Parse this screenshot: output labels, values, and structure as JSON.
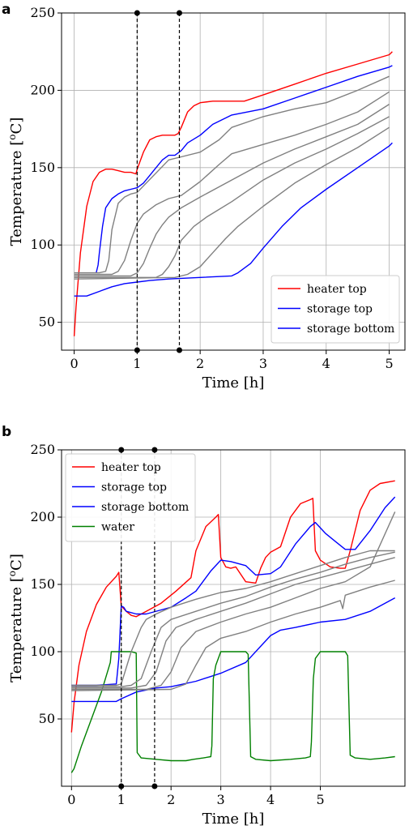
{
  "chart_data": [
    {
      "panel": "a",
      "type": "line",
      "xlabel": "Time [h]",
      "ylabel": "Temperature [",
      "ylabel_sup": "o",
      "ylabel_tail": "C]",
      "xlim": [
        -0.2,
        5.25
      ],
      "ylim": [
        32,
        250
      ],
      "xticks": [
        0,
        1,
        2,
        3,
        4,
        5
      ],
      "yticks": [
        50,
        100,
        150,
        200,
        250
      ],
      "grid": true,
      "legend_position": "lower-right",
      "vlines": [
        1.0,
        1.67
      ],
      "series": [
        {
          "name": "heater top",
          "color": "#ff0000",
          "legend": true,
          "x": [
            0,
            0.03,
            0.1,
            0.2,
            0.3,
            0.4,
            0.5,
            0.6,
            0.7,
            0.8,
            0.9,
            0.98,
            1.0,
            1.1,
            1.2,
            1.3,
            1.4,
            1.5,
            1.6,
            1.65,
            1.7,
            1.8,
            1.9,
            2.0,
            2.2,
            2.5,
            2.7,
            3.0,
            3.5,
            4.0,
            4.5,
            5.0,
            5.05
          ],
          "y": [
            41,
            60,
            95,
            125,
            141,
            147,
            149,
            149,
            148,
            147,
            147,
            146,
            149,
            160,
            168,
            170,
            171,
            171,
            171,
            172,
            176,
            186,
            190,
            192,
            193,
            193,
            193,
            197,
            204,
            211,
            217,
            223,
            225
          ]
        },
        {
          "name": "storage top",
          "color": "#0000ff",
          "legend": true,
          "x": [
            0.35,
            0.38,
            0.4,
            0.45,
            0.5,
            0.55,
            0.6,
            0.7,
            0.8,
            0.9,
            1.0,
            1.1,
            1.2,
            1.3,
            1.4,
            1.5,
            1.6,
            1.7,
            1.8,
            2.0,
            2.2,
            2.5,
            3.0,
            3.5,
            4.0,
            4.5,
            5.0,
            5.05
          ],
          "y": [
            82,
            87,
            95,
            112,
            124,
            127,
            130,
            133,
            135,
            136,
            137,
            140,
            145,
            150,
            155,
            158,
            158,
            161,
            166,
            171,
            178,
            184,
            188,
            195,
            202,
            209,
            215,
            216
          ]
        },
        {
          "name": "storage bottom",
          "color": "#0000ff",
          "legend": true,
          "x": [
            0,
            0.2,
            0.4,
            0.6,
            0.8,
            1.0,
            1.2,
            1.5,
            2.0,
            2.5,
            2.6,
            2.8,
            3.0,
            3.3,
            3.6,
            4.0,
            4.5,
            5.0,
            5.05
          ],
          "y": [
            67,
            67,
            70,
            73,
            75,
            76,
            77,
            78,
            79,
            80,
            82,
            88,
            98,
            112,
            124,
            136,
            150,
            164,
            166
          ]
        },
        {
          "name": "",
          "color": "#808080",
          "legend": false,
          "x": [
            0,
            0.4,
            0.5,
            0.55,
            0.6,
            0.7,
            0.8,
            0.9,
            1.0,
            1.5,
            1.7,
            2.0,
            2.3,
            2.5,
            3.0,
            3.5,
            4.0,
            4.5,
            5.0
          ],
          "y": [
            82,
            82,
            83,
            90,
            110,
            127,
            131,
            133,
            134,
            155,
            157,
            160,
            168,
            176,
            183,
            188,
            192,
            200,
            209
          ]
        },
        {
          "name": "",
          "color": "#808080",
          "legend": false,
          "x": [
            0,
            0.6,
            0.7,
            0.8,
            0.9,
            1.0,
            1.1,
            1.3,
            1.5,
            1.7,
            2.0,
            2.3,
            2.5,
            3.0,
            3.5,
            4.0,
            4.5,
            5.0
          ],
          "y": [
            81,
            81,
            83,
            90,
            103,
            114,
            120,
            126,
            130,
            132,
            141,
            152,
            159,
            165,
            171,
            178,
            186,
            199
          ]
        },
        {
          "name": "",
          "color": "#808080",
          "legend": false,
          "x": [
            0,
            0.9,
            1.0,
            1.1,
            1.2,
            1.3,
            1.4,
            1.5,
            1.7,
            2.0,
            2.5,
            3.0,
            3.5,
            4.0,
            4.5,
            5.0
          ],
          "y": [
            80,
            80,
            82,
            88,
            98,
            107,
            113,
            118,
            124,
            131,
            142,
            153,
            162,
            170,
            178,
            191
          ]
        },
        {
          "name": "",
          "color": "#808080",
          "legend": false,
          "x": [
            0,
            1.3,
            1.4,
            1.5,
            1.6,
            1.7,
            1.9,
            2.1,
            2.5,
            3.0,
            3.5,
            4.0,
            4.5,
            5.0
          ],
          "y": [
            79,
            79,
            81,
            86,
            93,
            103,
            112,
            118,
            128,
            142,
            153,
            162,
            172,
            183
          ]
        },
        {
          "name": "",
          "color": "#808080",
          "legend": false,
          "x": [
            0,
            1.6,
            1.8,
            2.0,
            2.2,
            2.4,
            2.6,
            3.0,
            3.5,
            4.0,
            4.5,
            5.0
          ],
          "y": [
            78,
            79,
            81,
            86,
            95,
            104,
            112,
            125,
            140,
            152,
            163,
            176
          ]
        }
      ]
    },
    {
      "panel": "b",
      "type": "line",
      "xlabel": "Time [h]",
      "ylabel": "Temperature [",
      "ylabel_sup": "o",
      "ylabel_tail": "C]",
      "xlim": [
        -0.2,
        6.7
      ],
      "ylim": [
        0,
        250
      ],
      "xticks": [
        0,
        1,
        2,
        3,
        4,
        5
      ],
      "yticks": [
        50,
        100,
        150,
        200,
        250
      ],
      "grid": true,
      "legend_position": "top-left",
      "vlines": [
        1.0,
        1.67
      ],
      "series": [
        {
          "name": "heater top",
          "color": "#ff0000",
          "legend": true,
          "x": [
            0,
            0.05,
            0.15,
            0.3,
            0.5,
            0.7,
            0.9,
            0.95,
            1.0,
            1.1,
            1.2,
            1.3,
            1.5,
            1.8,
            2.1,
            2.4,
            2.5,
            2.7,
            2.9,
            2.95,
            3.0,
            3.1,
            3.2,
            3.3,
            3.5,
            3.7,
            3.8,
            3.9,
            4.0,
            4.2,
            4.4,
            4.6,
            4.8,
            4.85,
            4.9,
            5.0,
            5.2,
            5.4,
            5.5,
            5.6,
            5.8,
            6.0,
            6.2,
            6.5
          ],
          "y": [
            40,
            62,
            90,
            115,
            135,
            148,
            156,
            159,
            134,
            130,
            127,
            126,
            130,
            136,
            145,
            155,
            175,
            193,
            200,
            202,
            170,
            163,
            162,
            163,
            152,
            151,
            162,
            170,
            174,
            178,
            200,
            210,
            213,
            214,
            175,
            168,
            163,
            162,
            162,
            175,
            205,
            220,
            225,
            227
          ]
        },
        {
          "name": "storage top",
          "color": "#0000ff",
          "legend": true,
          "x": [
            0,
            0.5,
            0.9,
            0.95,
            1.0,
            1.05,
            1.1,
            1.3,
            1.5,
            1.8,
            2.0,
            2.3,
            2.5,
            2.8,
            3.0,
            3.2,
            3.5,
            3.7,
            4.0,
            4.2,
            4.5,
            4.8,
            4.9,
            5.1,
            5.3,
            5.5,
            5.7,
            6.0,
            6.3,
            6.5
          ],
          "y": [
            75,
            75,
            76,
            95,
            134,
            133,
            130,
            128,
            128,
            131,
            133,
            140,
            145,
            160,
            168,
            167,
            164,
            157,
            158,
            163,
            180,
            193,
            196,
            188,
            182,
            176,
            176,
            190,
            207,
            215
          ]
        },
        {
          "name": "storage bottom",
          "color": "#0000ff",
          "legend": true,
          "x": [
            0,
            0.5,
            0.9,
            1.0,
            1.3,
            1.7,
            2.0,
            2.5,
            3.0,
            3.5,
            3.8,
            4.0,
            4.2,
            4.5,
            5.0,
            5.5,
            6.0,
            6.5
          ],
          "y": [
            63,
            63,
            63,
            65,
            70,
            73,
            74,
            78,
            84,
            92,
            104,
            112,
            116,
            118,
            122,
            124,
            130,
            140
          ]
        },
        {
          "name": "water",
          "color": "#008000",
          "legend": true,
          "x": [
            0,
            0.05,
            0.2,
            0.4,
            0.6,
            0.78,
            0.8,
            1.2,
            1.3,
            1.32,
            1.4,
            1.7,
            2.0,
            2.3,
            2.45,
            2.65,
            2.8,
            2.82,
            2.85,
            2.9,
            3.0,
            3.5,
            3.55,
            3.6,
            3.7,
            4.0,
            4.4,
            4.7,
            4.8,
            4.82,
            4.86,
            4.9,
            5.0,
            5.5,
            5.55,
            5.6,
            5.7,
            6.0,
            6.3,
            6.5
          ],
          "y": [
            10,
            13,
            30,
            50,
            70,
            92,
            100,
            100,
            99,
            25,
            21,
            20,
            19,
            19,
            20,
            21,
            22,
            30,
            80,
            90,
            100,
            100,
            98,
            22,
            20,
            19,
            20,
            21,
            22,
            33,
            80,
            95,
            100,
            100,
            97,
            23,
            21,
            20,
            21,
            22
          ]
        },
        {
          "name": "",
          "color": "#808080",
          "legend": false,
          "x": [
            0,
            0.9,
            1.0,
            1.2,
            1.4,
            1.5,
            1.7,
            2.0,
            2.5,
            3.0,
            3.5,
            4.0,
            4.5,
            5.0,
            5.5,
            6.0,
            6.5
          ],
          "y": [
            75,
            75,
            76,
            100,
            118,
            124,
            128,
            133,
            139,
            144,
            147,
            152,
            158,
            164,
            170,
            175,
            175
          ]
        },
        {
          "name": "",
          "color": "#808080",
          "legend": false,
          "x": [
            0,
            1.0,
            1.2,
            1.4,
            1.6,
            1.8,
            2.0,
            2.5,
            3.0,
            3.5,
            4.0,
            4.5,
            5.0,
            5.5,
            6.0,
            6.5
          ],
          "y": [
            74,
            74,
            75,
            80,
            100,
            118,
            124,
            130,
            136,
            141,
            148,
            154,
            159,
            165,
            170,
            174
          ]
        },
        {
          "name": "",
          "color": "#808080",
          "legend": false,
          "x": [
            0,
            1.2,
            1.5,
            1.7,
            1.9,
            2.1,
            2.5,
            3.0,
            3.5,
            4.0,
            4.5,
            5.0,
            5.5,
            6.0,
            6.5
          ],
          "y": [
            73,
            73,
            75,
            85,
            108,
            118,
            124,
            130,
            136,
            143,
            150,
            155,
            160,
            165,
            170
          ]
        },
        {
          "name": "",
          "color": "#808080",
          "legend": false,
          "x": [
            0,
            1.5,
            1.8,
            2.0,
            2.2,
            2.5,
            3.0,
            3.5,
            4.0,
            4.5,
            5.0,
            5.5,
            6.0,
            6.5
          ],
          "y": [
            72,
            72,
            75,
            85,
            103,
            115,
            122,
            128,
            133,
            140,
            147,
            152,
            163,
            204
          ]
        },
        {
          "name": "",
          "color": "#808080",
          "legend": false,
          "x": [
            0,
            2.0,
            2.3,
            2.5,
            2.7,
            3.0,
            3.5,
            4.0,
            4.5,
            5.0,
            5.4,
            5.45,
            5.5,
            6.0,
            6.5
          ],
          "y": [
            71,
            72,
            76,
            90,
            103,
            110,
            115,
            122,
            128,
            133,
            138,
            132,
            142,
            148,
            153
          ]
        }
      ]
    }
  ]
}
